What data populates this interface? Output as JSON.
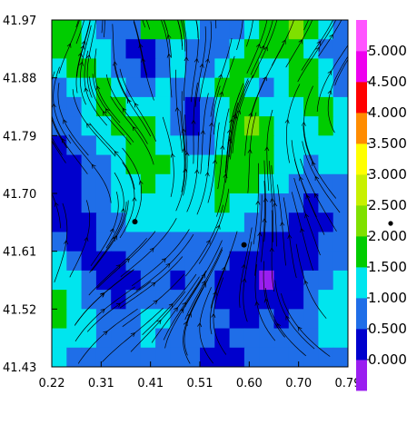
{
  "chart_data": {
    "type": "heatmap",
    "title": "",
    "xlabel": "",
    "ylabel": "",
    "x_ticks": [
      "0.22",
      "0.31",
      "0.41",
      "0.51",
      "0.60",
      "0.70",
      "0.79"
    ],
    "y_ticks": [
      "41.97",
      "41.88",
      "41.79",
      "41.70",
      "41.61",
      "41.52",
      "41.43"
    ],
    "xlim": [
      0.22,
      0.79
    ],
    "ylim": [
      41.43,
      41.97
    ],
    "overlay": "streamlines",
    "markers": [
      {
        "x": 0.38,
        "y": 41.656
      },
      {
        "x": 0.59,
        "y": 41.62
      }
    ],
    "colorbar": {
      "levels": [
        {
          "label": "0.000",
          "color": "#9a1ef0"
        },
        {
          "label": "0.500",
          "color": "#0000cd"
        },
        {
          "label": "1.000",
          "color": "#1f6ee8"
        },
        {
          "label": "1.500",
          "color": "#00e5ee"
        },
        {
          "label": "2.000",
          "color": "#00cc00"
        },
        {
          "label": "2.500",
          "color": "#7fe000"
        },
        {
          "label": "3.000",
          "color": "#c8f000"
        },
        {
          "label": "3.500",
          "color": "#ffff00"
        },
        {
          "label": "4.000",
          "color": "#ff8c00"
        },
        {
          "label": "4.500",
          "color": "#ff0000"
        },
        {
          "label": "5.000",
          "color": "#ee00ee"
        }
      ],
      "extra_segments": [
        "#ff55ff"
      ]
    },
    "field_values": [
      [
        2.2,
        2.0,
        1.8,
        1.4,
        1.1,
        1.3,
        2.1,
        2.4,
        2.0,
        1.6,
        1.2,
        1.0,
        1.4,
        1.8,
        2.2,
        2.4,
        2.6,
        2.2,
        1.5,
        1.1
      ],
      [
        2.0,
        2.2,
        1.9,
        1.5,
        1.2,
        0.8,
        0.6,
        1.3,
        1.8,
        1.3,
        1.0,
        1.4,
        1.9,
        2.1,
        2.4,
        2.3,
        2.0,
        1.6,
        1.3,
        1.0
      ],
      [
        1.6,
        2.0,
        2.1,
        1.7,
        1.4,
        1.0,
        0.8,
        1.2,
        1.5,
        1.1,
        1.4,
        1.9,
        2.2,
        2.0,
        1.7,
        1.8,
        2.1,
        2.0,
        1.5,
        1.2
      ],
      [
        1.3,
        1.6,
        1.9,
        2.1,
        1.8,
        1.4,
        1.2,
        1.6,
        1.4,
        1.0,
        1.6,
        2.2,
        2.3,
        1.8,
        1.4,
        1.6,
        2.0,
        2.2,
        1.8,
        1.4
      ],
      [
        1.1,
        1.3,
        1.6,
        2.0,
        2.2,
        1.9,
        1.7,
        1.5,
        1.1,
        0.8,
        1.3,
        1.9,
        2.4,
        2.2,
        1.8,
        1.5,
        1.8,
        2.1,
        2.0,
        1.6
      ],
      [
        1.0,
        1.2,
        1.5,
        1.8,
        2.1,
        2.2,
        2.0,
        1.6,
        1.2,
        0.9,
        1.2,
        1.8,
        2.3,
        2.5,
        2.1,
        1.7,
        1.6,
        1.9,
        2.1,
        1.8
      ],
      [
        0.9,
        1.1,
        1.3,
        1.6,
        1.9,
        2.1,
        2.2,
        1.8,
        1.5,
        1.2,
        1.4,
        1.9,
        2.2,
        2.4,
        2.2,
        1.9,
        1.6,
        1.7,
        1.9,
        1.7
      ],
      [
        0.7,
        0.9,
        1.1,
        1.4,
        1.7,
        2.0,
        2.1,
        2.0,
        1.7,
        1.5,
        1.6,
        2.0,
        2.3,
        2.2,
        2.0,
        1.8,
        1.5,
        1.4,
        1.6,
        1.5
      ],
      [
        0.6,
        0.8,
        1.0,
        1.3,
        1.6,
        1.8,
        2.0,
        1.9,
        1.8,
        1.7,
        1.8,
        2.1,
        2.2,
        2.0,
        1.7,
        1.5,
        1.2,
        1.1,
        1.3,
        1.2
      ],
      [
        0.5,
        0.7,
        1.0,
        1.2,
        1.5,
        1.7,
        1.9,
        1.8,
        1.7,
        1.8,
        1.9,
        2.0,
        1.9,
        1.7,
        1.4,
        1.2,
        1.0,
        0.9,
        1.1,
        1.0
      ],
      [
        0.8,
        0.6,
        0.9,
        1.1,
        1.3,
        1.5,
        1.6,
        1.5,
        1.5,
        1.6,
        1.7,
        1.6,
        1.5,
        1.3,
        1.1,
        1.0,
        0.8,
        0.7,
        0.9,
        1.0
      ],
      [
        1.2,
        0.9,
        0.8,
        1.0,
        1.1,
        1.2,
        1.3,
        1.2,
        1.2,
        1.3,
        1.4,
        1.3,
        1.2,
        1.0,
        0.8,
        0.7,
        0.6,
        0.8,
        1.0,
        1.1
      ],
      [
        1.6,
        1.2,
        0.9,
        0.7,
        0.9,
        1.0,
        1.1,
        1.0,
        1.0,
        1.1,
        1.2,
        1.1,
        0.9,
        0.7,
        0.6,
        0.5,
        0.6,
        0.8,
        1.1,
        1.3
      ],
      [
        1.9,
        1.5,
        1.1,
        0.8,
        0.6,
        0.9,
        1.2,
        1.1,
        0.9,
        1.0,
        1.0,
        0.8,
        0.6,
        0.5,
        0.4,
        0.6,
        0.8,
        1.0,
        1.3,
        1.5
      ],
      [
        2.1,
        1.8,
        1.4,
        1.0,
        0.8,
        1.1,
        1.4,
        1.3,
        1.1,
        1.2,
        1.1,
        0.9,
        0.7,
        0.6,
        0.5,
        0.7,
        0.9,
        1.2,
        1.5,
        1.7
      ],
      [
        2.0,
        1.9,
        1.6,
        1.2,
        1.0,
        1.3,
        1.6,
        1.5,
        1.3,
        1.4,
        1.2,
        1.0,
        0.8,
        0.9,
        1.0,
        0.8,
        1.0,
        1.3,
        1.6,
        1.8
      ],
      [
        1.8,
        1.7,
        1.5,
        1.3,
        1.2,
        1.4,
        1.5,
        1.4,
        1.3,
        1.2,
        1.0,
        0.9,
        1.0,
        1.1,
        1.2,
        1.0,
        1.1,
        1.4,
        1.5,
        1.6
      ],
      [
        1.5,
        1.4,
        1.3,
        1.2,
        1.1,
        1.2,
        1.3,
        1.2,
        1.1,
        1.0,
        0.9,
        0.8,
        0.9,
        1.0,
        1.1,
        1.0,
        1.0,
        1.2,
        1.3,
        1.4
      ]
    ]
  }
}
